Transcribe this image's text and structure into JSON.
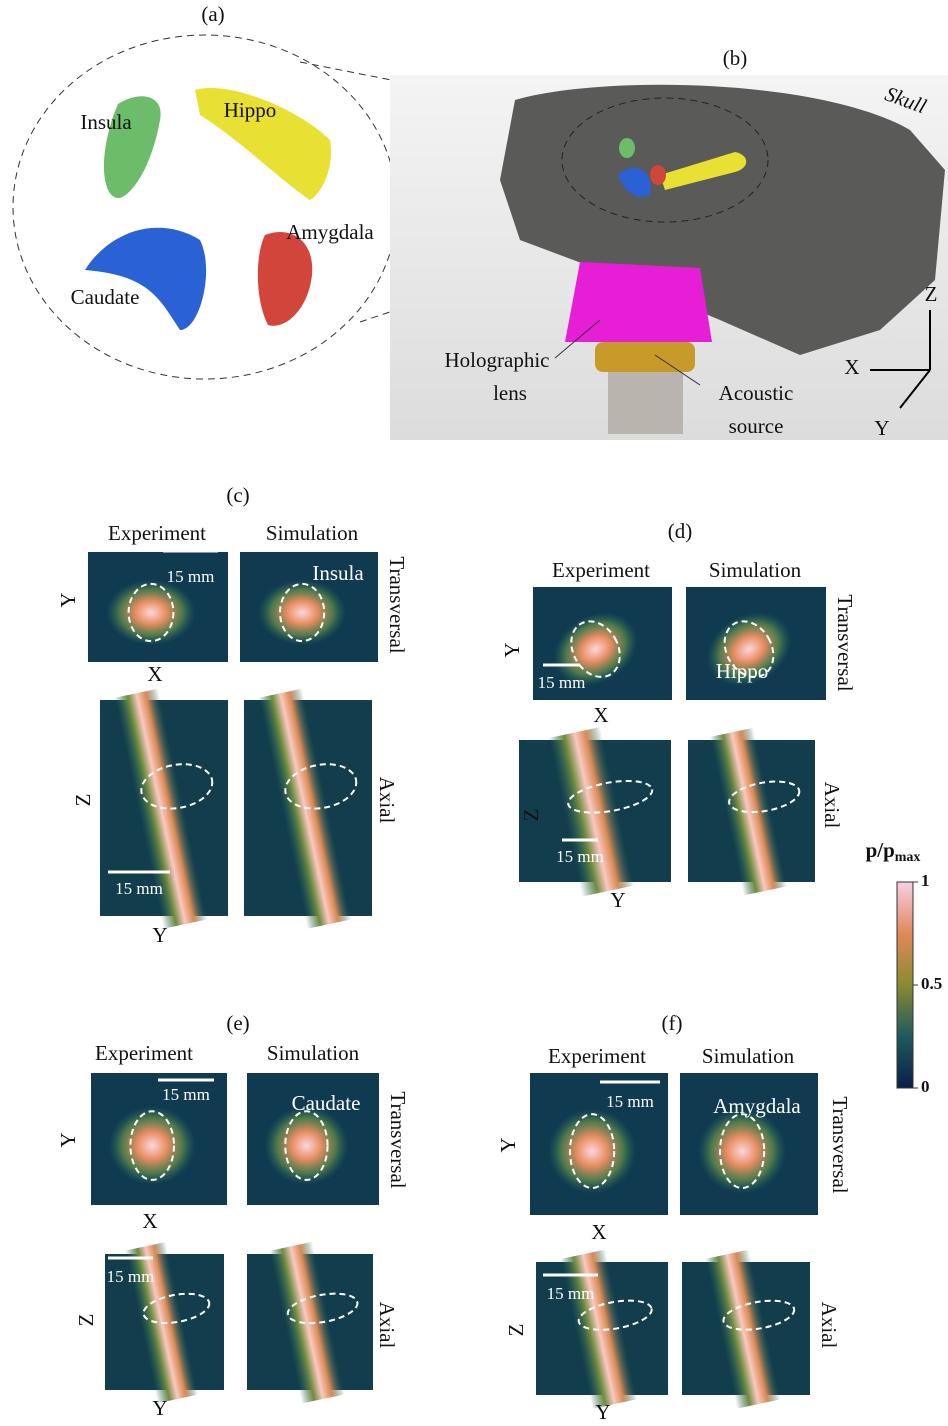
{
  "panel_a": {
    "label": "(a)",
    "structures": [
      "Insula",
      "Hippo",
      "Caudate",
      "Amygdala"
    ]
  },
  "panel_b": {
    "label": "(b)",
    "skull": "Skull",
    "lens": [
      "Holographic",
      "lens"
    ],
    "source": [
      "Acoustic",
      "source"
    ],
    "axes": [
      "Z",
      "X",
      "Y"
    ]
  },
  "panels": [
    {
      "label": "(c)",
      "experiment": "Experiment",
      "simulation": "Simulation",
      "target": "Insula",
      "transversal": "Transversal",
      "axial": "Axial",
      "scale_bar": [
        "15 mm",
        "15 mm"
      ],
      "transversal_axes": [
        "Y",
        "X"
      ],
      "axial_axes": [
        "Z",
        "Y"
      ]
    },
    {
      "label": "(d)",
      "experiment": "Experiment",
      "simulation": "Simulation",
      "target": "Hippo",
      "transversal": "Transversal",
      "axial": "Axial",
      "scale_bar": [
        "15 mm",
        "15 mm"
      ],
      "transversal_axes": [
        "Y",
        "X"
      ],
      "axial_axes": [
        "Z",
        "Y"
      ]
    },
    {
      "label": "(e)",
      "experiment": "Experiment",
      "simulation": "Simulation",
      "target": "Caudate",
      "transversal": "Transversal",
      "axial": "Axial",
      "scale_bar": [
        "15 mm",
        "15 mm"
      ],
      "transversal_axes": [
        "Y",
        "X"
      ],
      "axial_axes": [
        "Z",
        "Y"
      ]
    },
    {
      "label": "(f)",
      "experiment": "Experiment",
      "simulation": "Simulation",
      "target": "Amygdala",
      "transversal": "Transversal",
      "axial": "Axial",
      "scale_bar": [
        "15 mm",
        "15 mm"
      ],
      "transversal_axes": [
        "Y",
        "X"
      ],
      "axial_axes": [
        "Z",
        "Y"
      ]
    }
  ],
  "colorbar": {
    "label": "p/p",
    "label_sub": "max",
    "range": [
      0,
      1
    ],
    "ticks": [
      0,
      0.5,
      1
    ]
  }
}
